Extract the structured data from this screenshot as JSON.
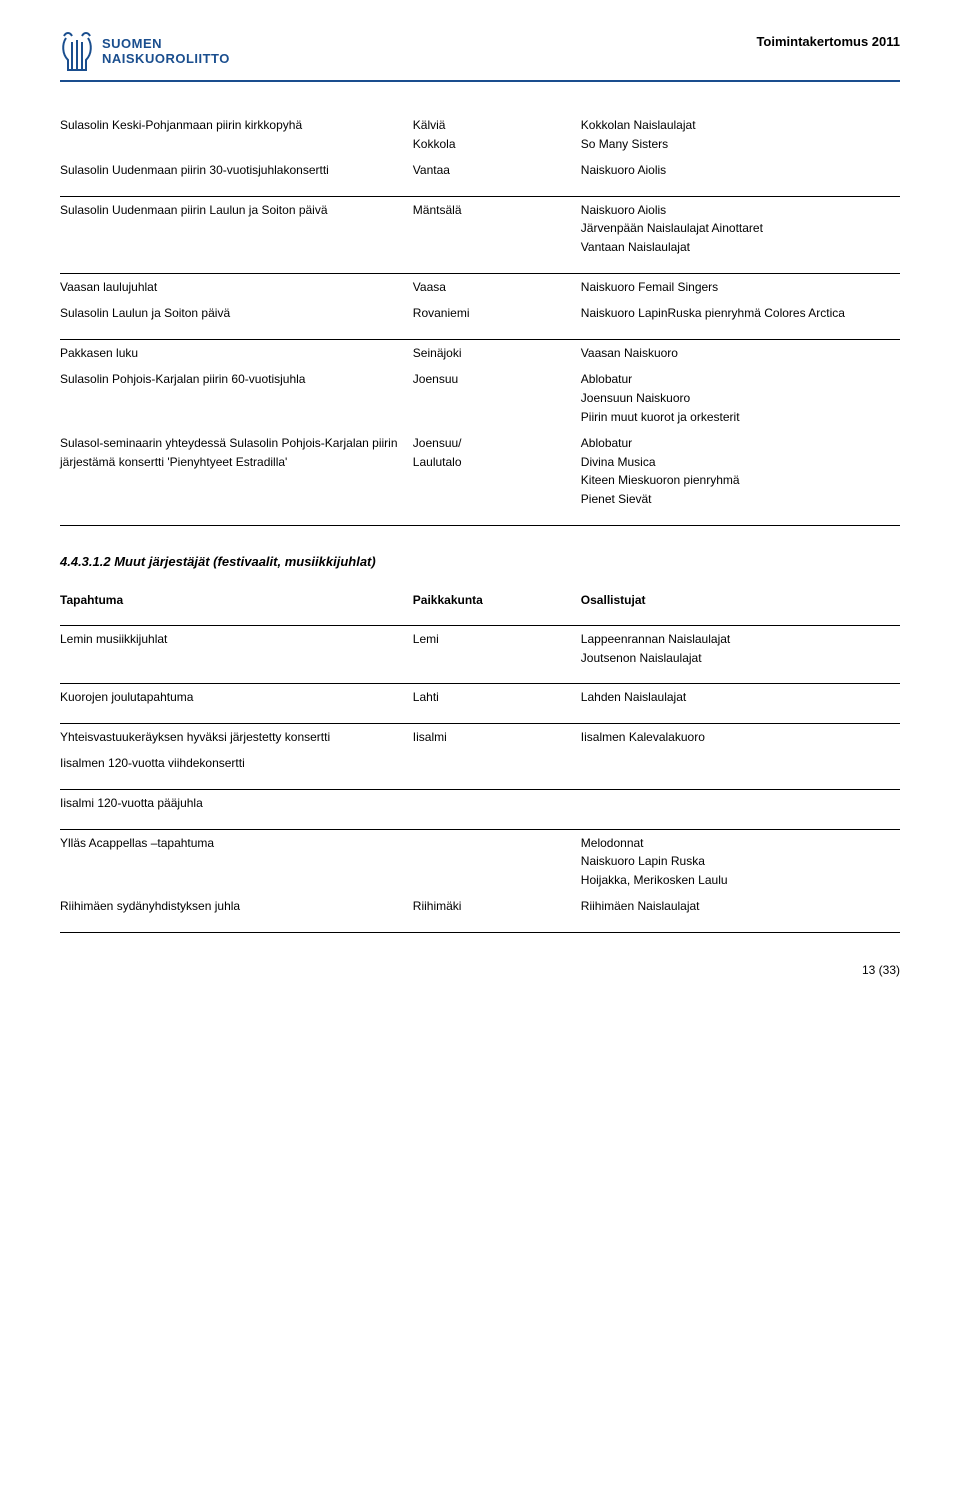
{
  "header": {
    "logo_line1": "SUOMEN",
    "logo_line2": "NAISKUOROLIITTO",
    "doc_title": "Toimintakertomus 2011",
    "logo_color": "#1a4e8e"
  },
  "table1": {
    "rows": [
      {
        "event": "Sulasolin Keski-Pohjanmaan piirin kirkkopyhä",
        "place": [
          "Kälviä",
          "Kokkola"
        ],
        "parts": [
          "Kokkolan Naislaulajat",
          "So Many Sisters"
        ]
      },
      {
        "event": "Sulasolin Uudenmaan piirin 30-vuotisjuhlakonsertti",
        "place": [
          "Vantaa"
        ],
        "parts": [
          "Naiskuoro Aiolis"
        ]
      },
      {
        "sep": true
      },
      {
        "event": "Sulasolin Uudenmaan piirin Laulun ja Soiton päivä",
        "place": [
          "Mäntsälä"
        ],
        "parts": [
          "Naiskuoro Aiolis",
          "Järvenpään Naislaulajat Ainottaret",
          "Vantaan Naislaulajat"
        ]
      },
      {
        "sep": true
      },
      {
        "event": "Vaasan laulujuhlat",
        "place": [
          "Vaasa"
        ],
        "parts": [
          "Naiskuoro Femail Singers"
        ]
      },
      {
        "event": "Sulasolin Laulun ja Soiton päivä",
        "place": [
          "Rovaniemi"
        ],
        "parts": [
          "Naiskuoro LapinRuska pienryhmä Colores Arctica"
        ]
      },
      {
        "sep": true
      },
      {
        "event": "Pakkasen luku",
        "place": [
          "Seinäjoki"
        ],
        "parts": [
          "Vaasan Naiskuoro"
        ]
      },
      {
        "event": "Sulasolin Pohjois-Karjalan piirin 60-vuotisjuhla",
        "place": [
          "Joensuu"
        ],
        "parts": [
          "Ablobatur",
          "Joensuun Naiskuoro",
          "Piirin muut kuorot ja orkesterit"
        ]
      },
      {
        "event": "Sulasol-seminaarin yhteydessä Sulasolin Pohjois-Karjalan piirin järjestämä konsertti 'Pienyhtyeet Estradilla'",
        "place": [
          "Joensuu/",
          "Laulutalo"
        ],
        "parts": [
          "Ablobatur",
          "Divina Musica",
          "Kiteen Mieskuoron pienryhmä",
          "Pienet Sievät"
        ]
      },
      {
        "sep": true
      }
    ]
  },
  "section_title": "4.4.3.1.2  Muut järjestäjät (festivaalit, musiikkijuhlat)",
  "table2": {
    "head": {
      "event": "Tapahtuma",
      "place": "Paikkakunta",
      "parts": "Osallistujat"
    },
    "rows": [
      {
        "event": "Lemin musiikkijuhlat",
        "place": [
          "Lemi"
        ],
        "parts": [
          "Lappeenrannan Naislaulajat",
          "Joutsenon Naislaulajat"
        ]
      },
      {
        "sep": true
      },
      {
        "event": "Kuorojen joulutapahtuma",
        "place": [
          "Lahti"
        ],
        "parts": [
          "Lahden Naislaulajat"
        ]
      },
      {
        "sep": true
      },
      {
        "event": "Yhteisvastuukeräyksen hyväksi järjestetty konsertti",
        "place": [
          "Iisalmi"
        ],
        "parts": [
          "Iisalmen Kalevalakuoro"
        ]
      },
      {
        "event": "Iisalmen 120-vuotta viihdekonsertti",
        "place": [],
        "parts": []
      },
      {
        "sep": true
      },
      {
        "event": "Iisalmi 120-vuotta pääjuhla",
        "place": [],
        "parts": []
      },
      {
        "sep": true
      },
      {
        "event": "Ylläs Acappellas –tapahtuma",
        "place": [],
        "parts": [
          "Melodonnat",
          "Naiskuoro Lapin Ruska",
          "Hoijakka, Merikosken Laulu"
        ]
      },
      {
        "event": "Riihimäen sydänyhdistyksen juhla",
        "place": [
          "Riihimäki"
        ],
        "parts": [
          "Riihimäen Naislaulajat"
        ]
      },
      {
        "sep": true
      }
    ]
  },
  "page_number": "13 (33)"
}
